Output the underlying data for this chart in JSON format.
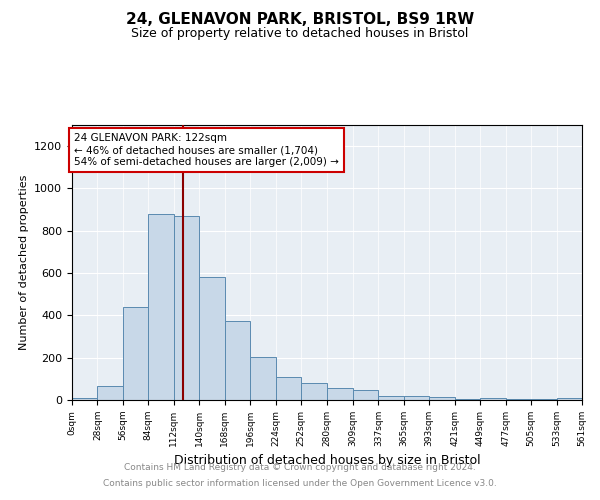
{
  "title": "24, GLENAVON PARK, BRISTOL, BS9 1RW",
  "subtitle": "Size of property relative to detached houses in Bristol",
  "xlabel": "Distribution of detached houses by size in Bristol",
  "ylabel": "Number of detached properties",
  "footer_line1": "Contains HM Land Registry data © Crown copyright and database right 2024.",
  "footer_line2": "Contains public sector information licensed under the Open Government Licence v3.0.",
  "bar_edges": [
    0,
    28,
    56,
    84,
    112,
    140,
    168,
    196,
    224,
    252,
    280,
    309,
    337,
    365,
    393,
    421,
    449,
    477,
    505,
    533,
    561
  ],
  "bar_heights": [
    10,
    65,
    440,
    880,
    870,
    580,
    375,
    205,
    110,
    80,
    55,
    45,
    20,
    18,
    15,
    5,
    8,
    5,
    5,
    10
  ],
  "bar_color": "#c8d8e8",
  "bar_edge_color": "#5a8ab0",
  "property_value": 122,
  "vline_color": "#8b0000",
  "annotation_text": "24 GLENAVON PARK: 122sqm\n← 46% of detached houses are smaller (1,704)\n54% of semi-detached houses are larger (2,009) →",
  "annotation_box_edgecolor": "#cc0000",
  "ylim": [
    0,
    1300
  ],
  "yticks": [
    0,
    200,
    400,
    600,
    800,
    1000,
    1200
  ],
  "tick_labels": [
    "0sqm",
    "28sqm",
    "56sqm",
    "84sqm",
    "112sqm",
    "140sqm",
    "168sqm",
    "196sqm",
    "224sqm",
    "252sqm",
    "280sqm",
    "309sqm",
    "337sqm",
    "365sqm",
    "393sqm",
    "421sqm",
    "449sqm",
    "477sqm",
    "505sqm",
    "533sqm",
    "561sqm"
  ],
  "bg_color": "#e8eef4",
  "fig_bg_color": "#ffffff"
}
